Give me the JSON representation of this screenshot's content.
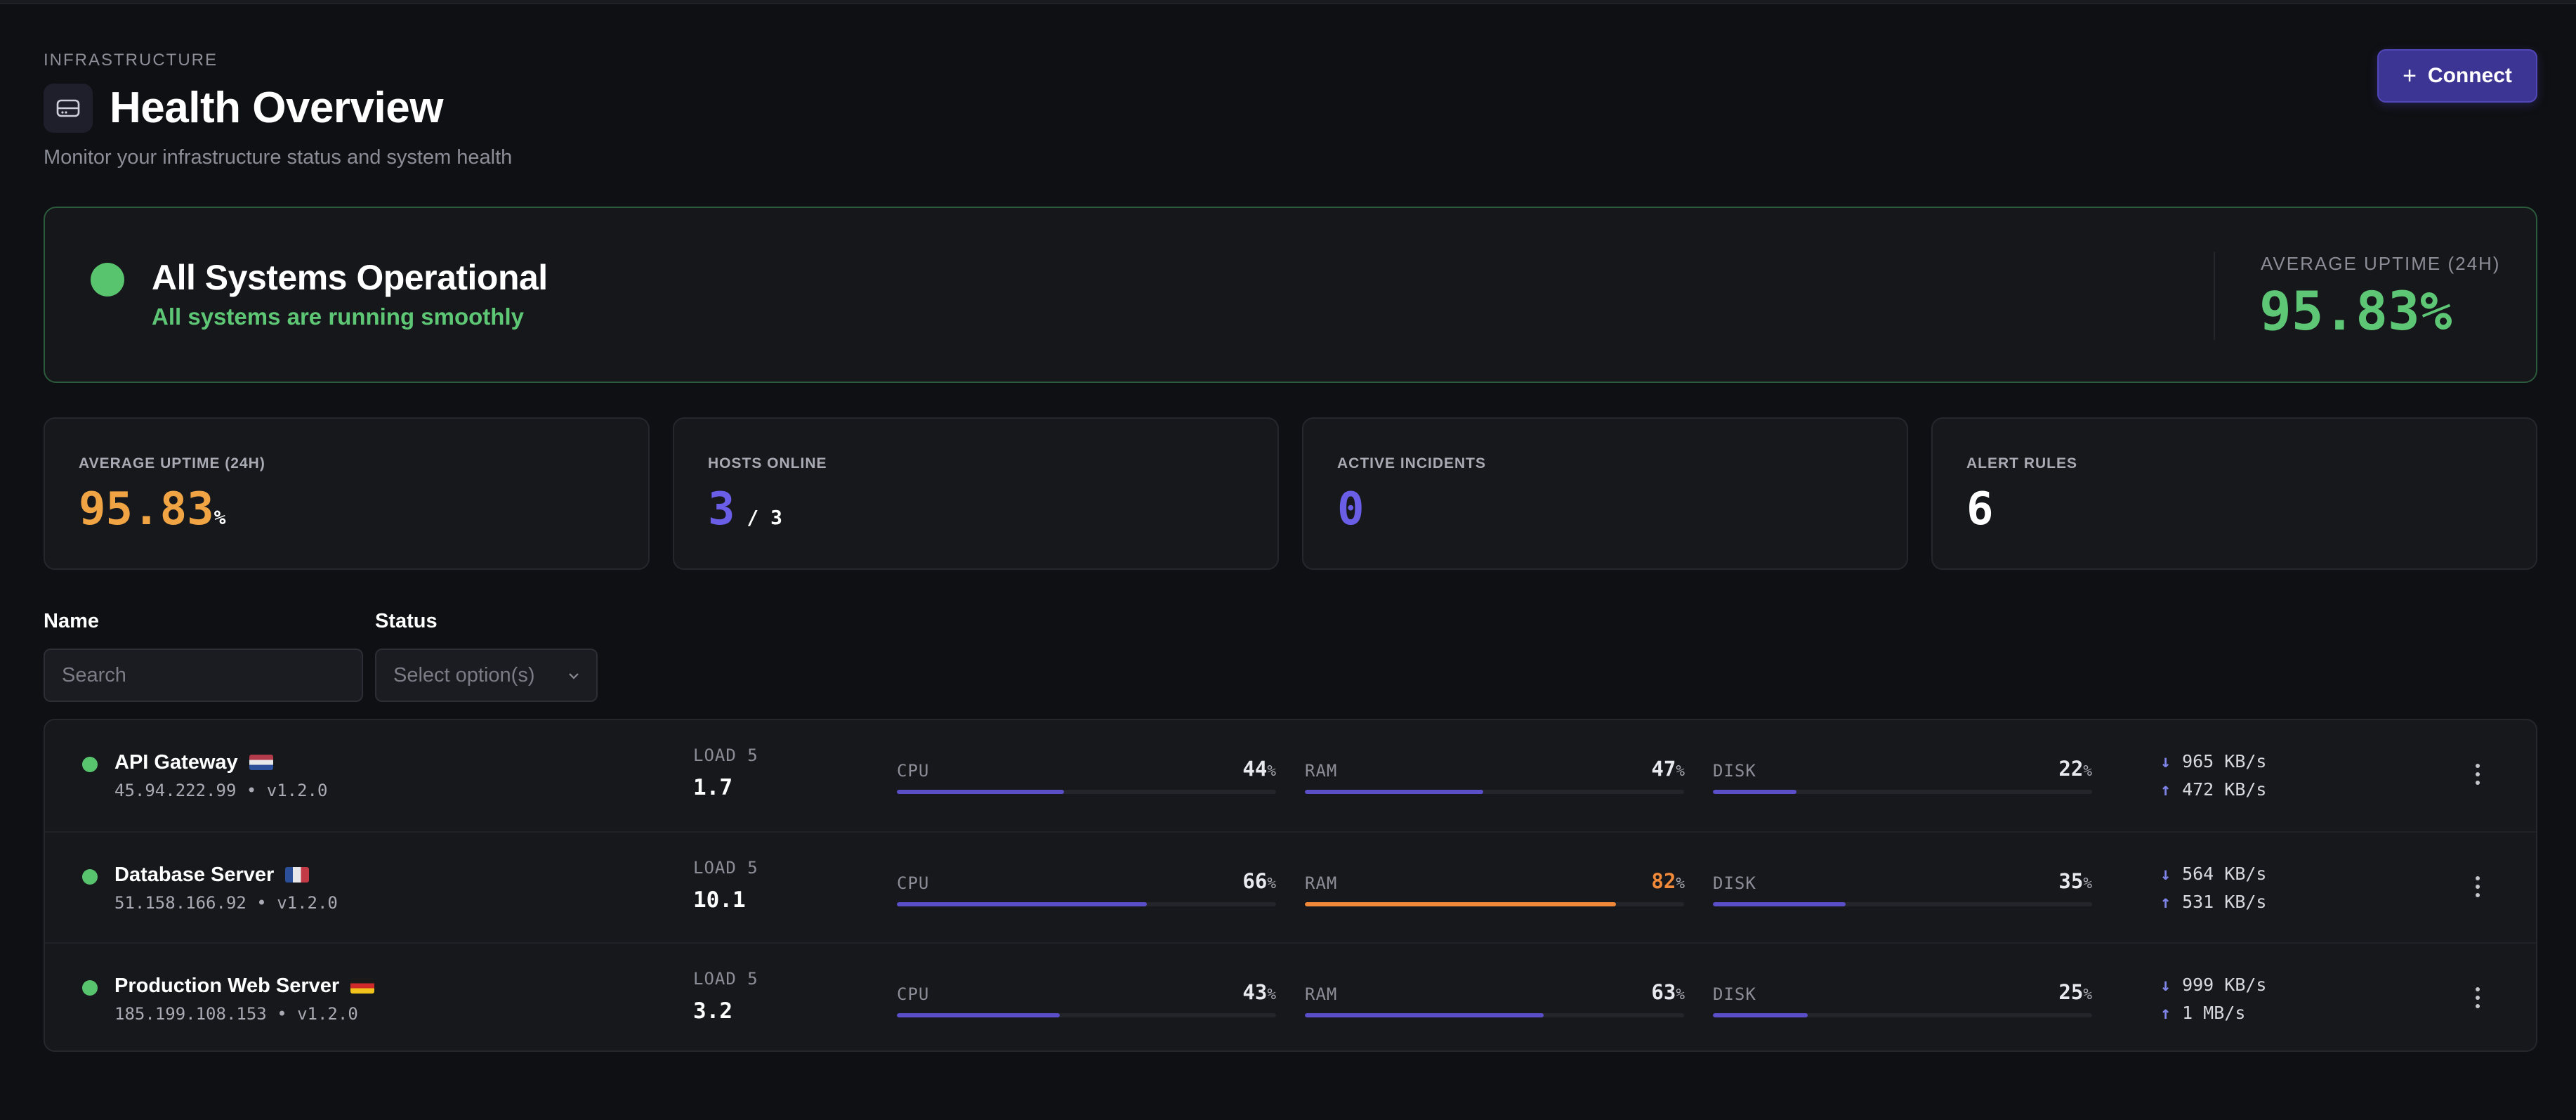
{
  "header": {
    "eyebrow": "INFRASTRUCTURE",
    "title": "Health Overview",
    "subtitle": "Monitor your infrastructure status and system health",
    "connect_label": "Connect"
  },
  "banner": {
    "title": "All Systems Operational",
    "subtitle": "All systems are running smoothly",
    "uptime_label": "AVERAGE UPTIME (24H)",
    "uptime_value": "95.83%",
    "status_color": "#59c46e"
  },
  "stats": [
    {
      "label": "AVERAGE UPTIME (24H)",
      "value": "95.83",
      "suffix": "%",
      "color": "#f0a444"
    },
    {
      "label": "HOSTS ONLINE",
      "value": "3",
      "suffix": " / 3",
      "color": "#6a5ee6"
    },
    {
      "label": "ACTIVE INCIDENTS",
      "value": "0",
      "suffix": "",
      "color": "#6a5ee6"
    },
    {
      "label": "ALERT RULES",
      "value": "6",
      "suffix": "",
      "color": "#ffffff"
    }
  ],
  "filters": {
    "name_label": "Name",
    "search_placeholder": "Search",
    "status_label": "Status",
    "status_placeholder": "Select option(s)"
  },
  "hosts": [
    {
      "name": "API Gateway",
      "flag": "nl",
      "ip": "45.94.222.99 • v1.2.0",
      "load_label": "LOAD 5",
      "load": "1.7",
      "cpu_label": "CPU",
      "cpu": 44,
      "ram_label": "RAM",
      "ram": 47,
      "disk_label": "DISK",
      "disk": 22,
      "down": "965 KB/s",
      "up": "472 KB/s"
    },
    {
      "name": "Database Server",
      "flag": "fr",
      "ip": "51.158.166.92 • v1.2.0",
      "load_label": "LOAD 5",
      "load": "10.1",
      "cpu_label": "CPU",
      "cpu": 66,
      "ram_label": "RAM",
      "ram": 82,
      "disk_label": "DISK",
      "disk": 35,
      "down": "564 KB/s",
      "up": "531 KB/s"
    },
    {
      "name": "Production Web Server",
      "flag": "de",
      "ip": "185.199.108.153 • v1.2.0",
      "load_label": "LOAD 5",
      "load": "3.2",
      "cpu_label": "CPU",
      "cpu": 43,
      "ram_label": "RAM",
      "ram": 63,
      "disk_label": "DISK",
      "disk": 25,
      "down": "999 KB/s",
      "up": "1 MB/s"
    }
  ],
  "colors": {
    "bar_normal": "#5a4fc9",
    "bar_warning": "#f08a3a",
    "value_warning": "#f08a3a",
    "status_up": "#59c46e"
  }
}
